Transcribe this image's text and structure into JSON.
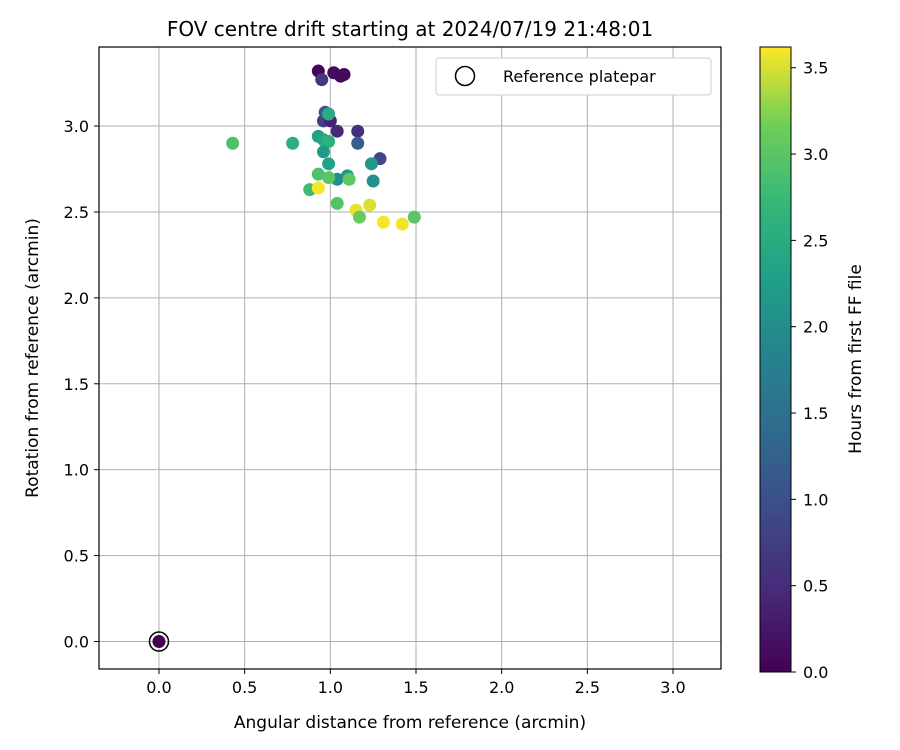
{
  "chart_data": {
    "type": "scatter",
    "title": "FOV centre drift starting at 2024/07/19 21:48:01",
    "xlabel": "Angular distance from reference (arcmin)",
    "ylabel": "Rotation from reference (arcmin)",
    "xlim": [
      -0.35,
      3.28
    ],
    "ylim": [
      -0.16,
      3.46
    ],
    "xticks": [
      "0.0",
      "0.5",
      "1.0",
      "1.5",
      "2.0",
      "2.5",
      "3.0"
    ],
    "yticks": [
      "0.0",
      "0.5",
      "1.0",
      "1.5",
      "2.0",
      "2.5",
      "3.0"
    ],
    "grid": true,
    "legend": {
      "placement": "top-right",
      "entries": [
        "Reference platepar"
      ]
    },
    "reference_point": {
      "x": 0.0,
      "y": 0.0,
      "hours": 0.0
    },
    "colorbar": {
      "label": "Hours from first FF file",
      "colormap": "viridis",
      "range": [
        0.0,
        3.62
      ],
      "ticks": [
        "0.0",
        "0.5",
        "1.0",
        "1.5",
        "2.0",
        "2.5",
        "3.0",
        "3.5"
      ]
    },
    "series": [
      {
        "points": [
          {
            "x": 0.93,
            "y": 3.32,
            "hours": 0.05
          },
          {
            "x": 1.02,
            "y": 3.31,
            "hours": 0.1
          },
          {
            "x": 1.06,
            "y": 3.29,
            "hours": 0.12
          },
          {
            "x": 1.08,
            "y": 3.3,
            "hours": 0.08
          },
          {
            "x": 0.95,
            "y": 3.27,
            "hours": 0.65
          },
          {
            "x": 0.96,
            "y": 3.03,
            "hours": 0.75
          },
          {
            "x": 0.97,
            "y": 3.08,
            "hours": 1.1
          },
          {
            "x": 1.0,
            "y": 3.03,
            "hours": 0.4
          },
          {
            "x": 1.04,
            "y": 2.97,
            "hours": 0.45
          },
          {
            "x": 1.16,
            "y": 2.97,
            "hours": 0.55
          },
          {
            "x": 1.16,
            "y": 2.9,
            "hours": 1.2
          },
          {
            "x": 1.29,
            "y": 2.81,
            "hours": 0.9
          },
          {
            "x": 0.99,
            "y": 3.07,
            "hours": 2.5
          },
          {
            "x": 0.93,
            "y": 2.94,
            "hours": 2.3
          },
          {
            "x": 0.96,
            "y": 2.92,
            "hours": 2.45
          },
          {
            "x": 0.99,
            "y": 2.91,
            "hours": 2.6
          },
          {
            "x": 0.96,
            "y": 2.85,
            "hours": 2.2
          },
          {
            "x": 0.99,
            "y": 2.78,
            "hours": 2.35
          },
          {
            "x": 1.24,
            "y": 2.78,
            "hours": 2.15
          },
          {
            "x": 1.25,
            "y": 2.68,
            "hours": 2.05
          },
          {
            "x": 1.04,
            "y": 2.69,
            "hours": 2.0
          },
          {
            "x": 1.1,
            "y": 2.71,
            "hours": 2.1
          },
          {
            "x": 0.93,
            "y": 2.72,
            "hours": 2.9
          },
          {
            "x": 0.99,
            "y": 2.7,
            "hours": 3.0
          },
          {
            "x": 1.11,
            "y": 2.69,
            "hours": 3.05
          },
          {
            "x": 0.88,
            "y": 2.63,
            "hours": 2.8
          },
          {
            "x": 0.93,
            "y": 2.64,
            "hours": 3.6
          },
          {
            "x": 1.04,
            "y": 2.55,
            "hours": 2.95
          },
          {
            "x": 0.43,
            "y": 2.9,
            "hours": 2.9
          },
          {
            "x": 0.78,
            "y": 2.9,
            "hours": 2.55
          },
          {
            "x": 1.15,
            "y": 2.51,
            "hours": 3.55
          },
          {
            "x": 1.23,
            "y": 2.54,
            "hours": 3.5
          },
          {
            "x": 1.17,
            "y": 2.47,
            "hours": 3.1
          },
          {
            "x": 1.31,
            "y": 2.44,
            "hours": 3.6
          },
          {
            "x": 1.42,
            "y": 2.43,
            "hours": 3.58
          },
          {
            "x": 1.49,
            "y": 2.47,
            "hours": 3.0
          }
        ]
      }
    ]
  }
}
